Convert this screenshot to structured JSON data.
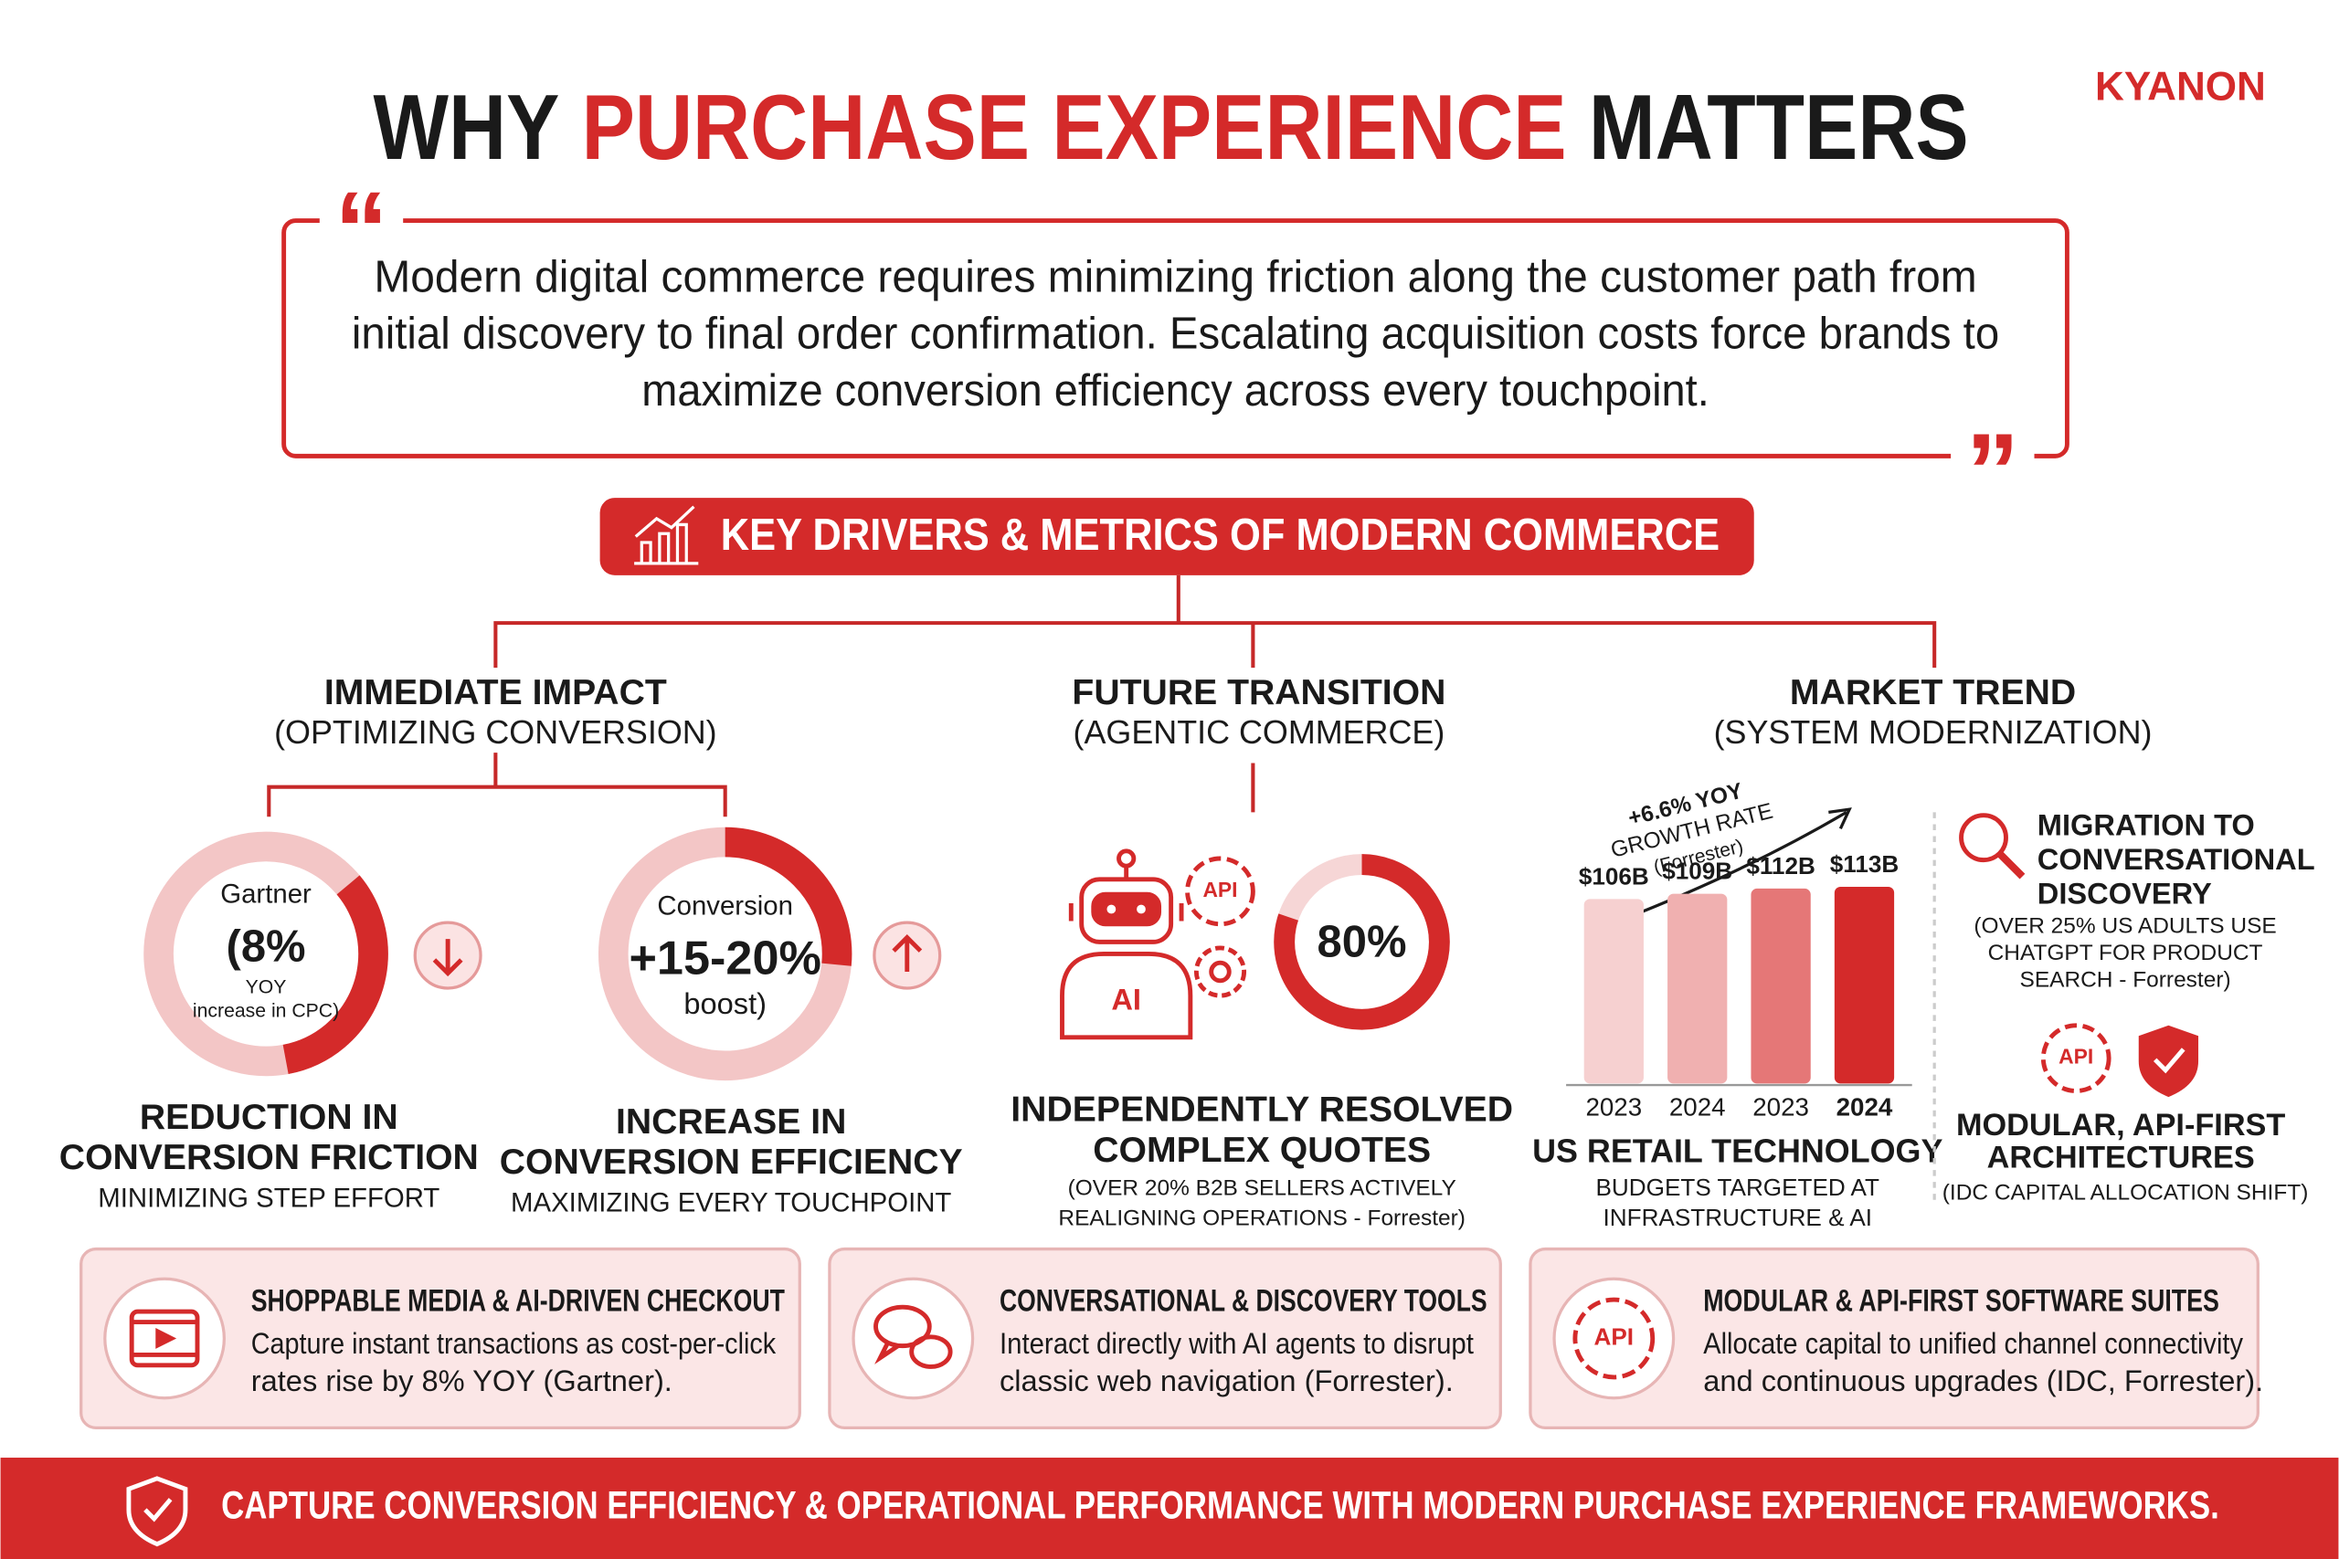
{
  "brand": "KYANON",
  "title": {
    "lead": "WHY",
    "highlight": "PURCHASE EXPERIENCE",
    "tail": "MATTERS"
  },
  "quote": {
    "open": "“",
    "close": "”",
    "lines": [
      "Modern digital commerce requires minimizing friction along the customer path from",
      "initial discovery to final order confirmation. Escalating acquisition costs force brands to",
      "maximize conversion efficiency across every touchpoint."
    ]
  },
  "section_header": "KEY DRIVERS & METRICS OF MODERN COMMERCE",
  "immediate": {
    "heading": "IMMEDIATE IMPACT",
    "subheading": "(OPTIMIZING CONVERSION)",
    "metrics": [
      {
        "ring_title": "Gartner",
        "ring_value": "(8%",
        "ring_notes": [
          "YOY",
          "increase in CPC)"
        ],
        "label_lines": [
          "REDUCTION IN",
          "CONVERSION FRICTION"
        ],
        "caption": "MINIMIZING STEP EFFORT"
      },
      {
        "ring_title": "Conversion",
        "ring_value": "+15-20%",
        "ring_notes": [
          "boost)"
        ],
        "label_lines": [
          "INCREASE IN",
          "CONVERSION EFFICIENCY"
        ],
        "caption": "MAXIMIZING EVERY TOUCHPOINT"
      }
    ]
  },
  "future": {
    "heading": "FUTURE TRANSITION",
    "subheading": "(AGENTIC COMMERCE)",
    "robot_text": "AI",
    "gear_text": "API",
    "ring_value": "80%",
    "label_lines": [
      "INDEPENDENTLY RESOLVED",
      "COMPLEX QUOTES"
    ],
    "note_lines": [
      "(OVER 20% B2B SELLERS ACTIVELY",
      "REALIGNING OPERATIONS - Forrester)"
    ]
  },
  "market": {
    "heading": "MARKET TREND",
    "subheading": "(SYSTEM MODERNIZATION)",
    "growth_lines": [
      "+6.6% YOY",
      "GROWTH RATE",
      "(Forrester)"
    ],
    "bars": [
      {
        "year": "2023",
        "label": "$106B",
        "value": 106
      },
      {
        "year": "2024",
        "label": "$109B",
        "value": 109
      },
      {
        "year": "2023",
        "label": "$112B",
        "value": 112
      },
      {
        "year": "2024",
        "label": "$113B",
        "value": 113
      }
    ],
    "chart_title": "US RETAIL TECHNOLOGY",
    "chart_note_lines": [
      "BUDGETS TARGETED AT",
      "INFRASTRUCTURE & AI"
    ],
    "migration_lines": [
      "MIGRATION TO",
      "CONVERSATIONAL",
      "DISCOVERY"
    ],
    "migration_note_lines": [
      "(OVER 25% US ADULTS USE",
      "CHATGPT FOR PRODUCT",
      "SEARCH - Forrester)"
    ],
    "badge_text": "API",
    "modular_lines": [
      "MODULAR, API-FIRST",
      "ARCHITECTURES"
    ],
    "modular_note": "(IDC CAPITAL ALLOCATION SHIFT)"
  },
  "cards": [
    {
      "title": "SHOPPABLE MEDIA & AI-DRIVEN CHECKOUT",
      "lines": [
        "Capture instant transactions as cost-per-click",
        "rates rise by 8% YOY (Gartner)."
      ]
    },
    {
      "title": "CONVERSATIONAL & DISCOVERY TOOLS",
      "lines": [
        "Interact directly with AI agents to disrupt",
        "classic web navigation (Forrester)."
      ]
    },
    {
      "title": "MODULAR & API-FIRST SOFTWARE SUITES",
      "icon_text": "API",
      "lines": [
        "Allocate capital to unified channel connectivity",
        "and continuous upgrades (IDC, Forrester)."
      ]
    }
  ],
  "footer": "CAPTURE CONVERSION EFFICIENCY & OPERATIONAL PERFORMANCE WITH MODERN PURCHASE EXPERIENCE FRAMEWORKS."
}
